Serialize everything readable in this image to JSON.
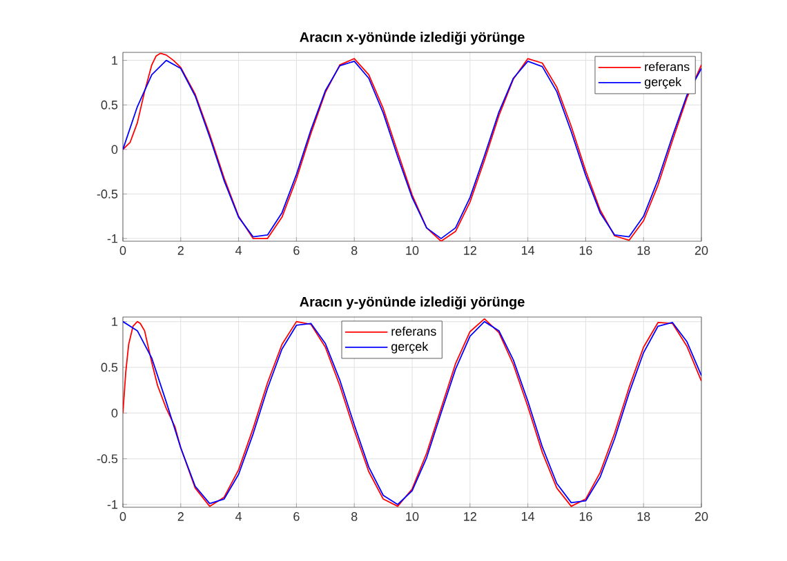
{
  "chart_data": [
    {
      "type": "line",
      "title": "Aracın x-yönünde izlediği yörünge",
      "xlim": [
        0,
        20
      ],
      "ylim": [
        -1.03,
        1.09
      ],
      "xticks": [
        0,
        2,
        4,
        6,
        8,
        10,
        12,
        14,
        16,
        18,
        20
      ],
      "yticks": [
        -1,
        -0.5,
        0,
        0.5,
        1
      ],
      "grid": true,
      "legend": "top right",
      "line_style": "solid",
      "series": [
        {
          "name": "referans",
          "color": "#ff0000",
          "x": [
            0,
            0.25,
            0.5,
            0.75,
            1,
            1.15,
            1.3,
            1.5,
            1.75,
            2,
            2.5,
            3,
            3.5,
            4,
            4.5,
            5,
            5.5,
            6,
            6.5,
            7,
            7.5,
            8,
            8.5,
            9,
            9.5,
            10,
            10.5,
            11,
            11.5,
            12,
            12.5,
            13,
            13.5,
            14,
            14.5,
            15,
            15.5,
            16,
            16.5,
            17,
            17.5,
            18,
            18.5,
            19,
            19.5,
            20
          ],
          "values": [
            0,
            0.08,
            0.3,
            0.65,
            0.95,
            1.05,
            1.08,
            1.06,
            1.0,
            0.92,
            0.62,
            0.17,
            -0.32,
            -0.75,
            -1.0,
            -1.0,
            -0.76,
            -0.33,
            0.18,
            0.64,
            0.95,
            1.02,
            0.84,
            0.46,
            -0.03,
            -0.51,
            -0.88,
            -1.03,
            -0.92,
            -0.59,
            -0.12,
            0.38,
            0.79,
            1.02,
            0.97,
            0.7,
            0.26,
            -0.24,
            -0.68,
            -0.97,
            -1.02,
            -0.8,
            -0.4,
            0.1,
            0.58,
            0.95
          ]
        },
        {
          "name": "gerçek",
          "color": "#0000ff",
          "x": [
            0,
            0.5,
            1,
            1.5,
            2,
            2.5,
            3,
            3.5,
            4,
            4.5,
            5,
            5.5,
            6,
            6.5,
            7,
            7.5,
            8,
            8.5,
            9,
            9.5,
            10,
            10.5,
            11,
            11.5,
            12,
            12.5,
            13,
            13.5,
            14,
            14.5,
            15,
            15.5,
            16,
            16.5,
            17,
            17.5,
            18,
            18.5,
            19,
            19.5,
            20
          ],
          "values": [
            0,
            0.48,
            0.84,
            1.0,
            0.91,
            0.6,
            0.14,
            -0.35,
            -0.76,
            -0.98,
            -0.96,
            -0.71,
            -0.28,
            0.22,
            0.66,
            0.94,
            0.99,
            0.8,
            0.41,
            -0.08,
            -0.54,
            -0.88,
            -1.0,
            -0.88,
            -0.54,
            -0.07,
            0.42,
            0.8,
            0.99,
            0.93,
            0.65,
            0.2,
            -0.29,
            -0.71,
            -0.96,
            -0.98,
            -0.75,
            -0.34,
            0.15,
            0.61,
            0.91
          ]
        }
      ]
    },
    {
      "type": "line",
      "title": "Aracın y-yönünde izlediği yörünge",
      "xlim": [
        0,
        20
      ],
      "ylim": [
        -1.03,
        1.05
      ],
      "xticks": [
        0,
        2,
        4,
        6,
        8,
        10,
        12,
        14,
        16,
        18,
        20
      ],
      "yticks": [
        -1,
        -0.5,
        0,
        0.5,
        1
      ],
      "grid": true,
      "legend": "top",
      "line_style": "solid",
      "series": [
        {
          "name": "referans",
          "color": "#ff0000",
          "x": [
            0,
            0.1,
            0.2,
            0.35,
            0.5,
            0.6,
            0.75,
            1,
            1.2,
            1.5,
            1.8,
            2,
            2.5,
            3,
            3.5,
            4,
            4.5,
            5,
            5.5,
            6,
            6.5,
            7,
            7.5,
            8,
            8.5,
            9,
            9.5,
            10,
            10.5,
            11,
            11.5,
            12,
            12.5,
            13,
            13.5,
            14,
            14.5,
            15,
            15.5,
            16,
            16.5,
            17,
            17.5,
            18,
            18.5,
            19,
            19.5,
            20
          ],
          "values": [
            0,
            0.45,
            0.75,
            0.95,
            1.0,
            0.98,
            0.9,
            0.55,
            0.3,
            0.05,
            -0.15,
            -0.38,
            -0.82,
            -1.02,
            -0.92,
            -0.62,
            -0.17,
            0.33,
            0.75,
            1.0,
            0.97,
            0.72,
            0.3,
            -0.19,
            -0.64,
            -0.94,
            -1.02,
            -0.83,
            -0.44,
            0.05,
            0.54,
            0.89,
            1.03,
            0.88,
            0.53,
            0.07,
            -0.43,
            -0.82,
            -1.02,
            -0.94,
            -0.65,
            -0.22,
            0.28,
            0.72,
            0.99,
            0.98,
            0.73,
            0.35
          ]
        },
        {
          "name": "gerçek",
          "color": "#0000ff",
          "x": [
            0,
            0.5,
            1,
            1.5,
            2,
            2.5,
            3,
            3.5,
            4,
            4.5,
            5,
            5.5,
            6,
            6.5,
            7,
            7.5,
            8,
            8.5,
            9,
            9.5,
            10,
            10.5,
            11,
            11.5,
            12,
            12.5,
            13,
            13.5,
            14,
            14.5,
            15,
            15.5,
            16,
            16.5,
            17,
            17.5,
            18,
            18.5,
            19,
            19.5,
            20
          ],
          "values": [
            1.0,
            0.9,
            0.6,
            0.12,
            -0.38,
            -0.8,
            -0.99,
            -0.94,
            -0.67,
            -0.23,
            0.27,
            0.7,
            0.96,
            0.98,
            0.76,
            0.36,
            -0.13,
            -0.59,
            -0.9,
            -1.0,
            -0.85,
            -0.49,
            0.0,
            0.48,
            0.84,
            1.0,
            0.9,
            0.58,
            0.13,
            -0.37,
            -0.77,
            -0.98,
            -0.96,
            -0.7,
            -0.28,
            0.22,
            0.66,
            0.95,
            0.99,
            0.78,
            0.41
          ]
        }
      ]
    }
  ]
}
